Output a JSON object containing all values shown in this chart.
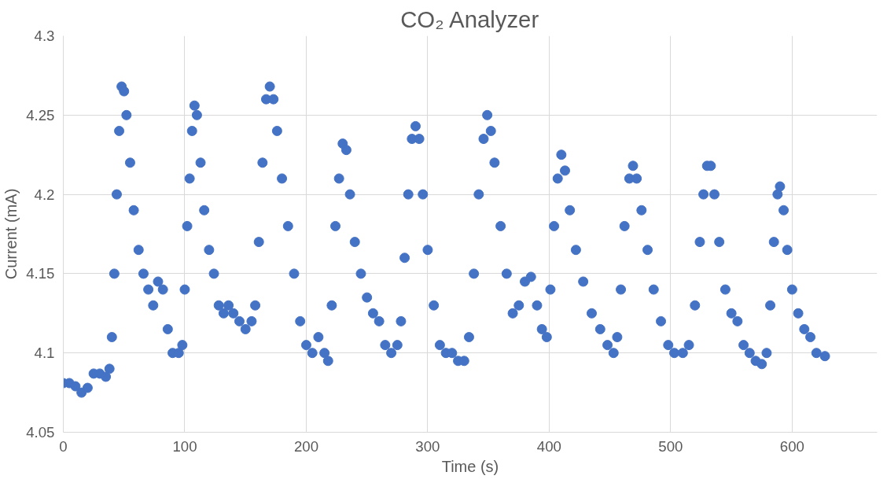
{
  "chart_data": {
    "type": "scatter",
    "title": "CO₂ Analyzer",
    "xlabel": "Time (s)",
    "ylabel": "Current (mA)",
    "marker": "circle",
    "grid": true,
    "xlim": [
      0,
      670
    ],
    "ylim": [
      4.05,
      4.3
    ],
    "xticks": [
      0,
      100,
      200,
      300,
      400,
      500,
      600
    ],
    "yticks": [
      4.05,
      4.1,
      4.15,
      4.2,
      4.25,
      4.3
    ],
    "series": [
      {
        "color": "#4472c4",
        "x": [
          0,
          5,
          10,
          15,
          20,
          25,
          30,
          35,
          38,
          40,
          42,
          44,
          46,
          48,
          50,
          52,
          55,
          58,
          62,
          66,
          70,
          74,
          78,
          82,
          86,
          90,
          95,
          98,
          100,
          102,
          104,
          106,
          108,
          110,
          113,
          116,
          120,
          124,
          128,
          132,
          136,
          140,
          145,
          150,
          155,
          158,
          161,
          164,
          167,
          170,
          173,
          176,
          180,
          185,
          190,
          195,
          200,
          205,
          210,
          215,
          218,
          221,
          224,
          227,
          230,
          233,
          236,
          240,
          245,
          250,
          255,
          260,
          265,
          270,
          275,
          278,
          281,
          284,
          287,
          290,
          293,
          296,
          300,
          305,
          310,
          315,
          320,
          325,
          330,
          334,
          338,
          342,
          346,
          349,
          352,
          355,
          360,
          365,
          370,
          375,
          380,
          385,
          390,
          394,
          398,
          401,
          404,
          407,
          410,
          413,
          417,
          422,
          428,
          435,
          442,
          448,
          453,
          456,
          459,
          462,
          466,
          469,
          472,
          476,
          481,
          486,
          492,
          498,
          503,
          510,
          515,
          520,
          524,
          527,
          530,
          533,
          536,
          540,
          545,
          550,
          555,
          560,
          565,
          570,
          575,
          579,
          582,
          585,
          588,
          590,
          593,
          596,
          600,
          605,
          610,
          615,
          620,
          627
        ],
        "values": [
          4.081,
          4.081,
          4.079,
          4.075,
          4.078,
          4.087,
          4.087,
          4.085,
          4.09,
          4.11,
          4.15,
          4.2,
          4.24,
          4.268,
          4.265,
          4.25,
          4.22,
          4.19,
          4.165,
          4.15,
          4.14,
          4.13,
          4.145,
          4.14,
          4.115,
          4.1,
          4.1,
          4.105,
          4.14,
          4.18,
          4.21,
          4.24,
          4.256,
          4.25,
          4.22,
          4.19,
          4.165,
          4.15,
          4.13,
          4.125,
          4.13,
          4.125,
          4.12,
          4.115,
          4.12,
          4.13,
          4.17,
          4.22,
          4.26,
          4.268,
          4.26,
          4.24,
          4.21,
          4.18,
          4.15,
          4.12,
          4.105,
          4.1,
          4.11,
          4.1,
          4.095,
          4.13,
          4.18,
          4.21,
          4.232,
          4.228,
          4.2,
          4.17,
          4.15,
          4.135,
          4.125,
          4.12,
          4.105,
          4.1,
          4.105,
          4.12,
          4.16,
          4.2,
          4.235,
          4.243,
          4.235,
          4.2,
          4.165,
          4.13,
          4.105,
          4.1,
          4.1,
          4.095,
          4.095,
          4.11,
          4.15,
          4.2,
          4.235,
          4.25,
          4.24,
          4.22,
          4.18,
          4.15,
          4.125,
          4.13,
          4.145,
          4.148,
          4.13,
          4.115,
          4.11,
          4.14,
          4.18,
          4.21,
          4.225,
          4.215,
          4.19,
          4.165,
          4.145,
          4.125,
          4.115,
          4.105,
          4.1,
          4.11,
          4.14,
          4.18,
          4.21,
          4.218,
          4.21,
          4.19,
          4.165,
          4.14,
          4.12,
          4.105,
          4.1,
          4.1,
          4.105,
          4.13,
          4.17,
          4.2,
          4.218,
          4.218,
          4.2,
          4.17,
          4.14,
          4.125,
          4.12,
          4.105,
          4.1,
          4.095,
          4.093,
          4.1,
          4.13,
          4.17,
          4.2,
          4.205,
          4.19,
          4.165,
          4.14,
          4.125,
          4.115,
          4.11,
          4.1,
          4.098
        ]
      }
    ]
  }
}
